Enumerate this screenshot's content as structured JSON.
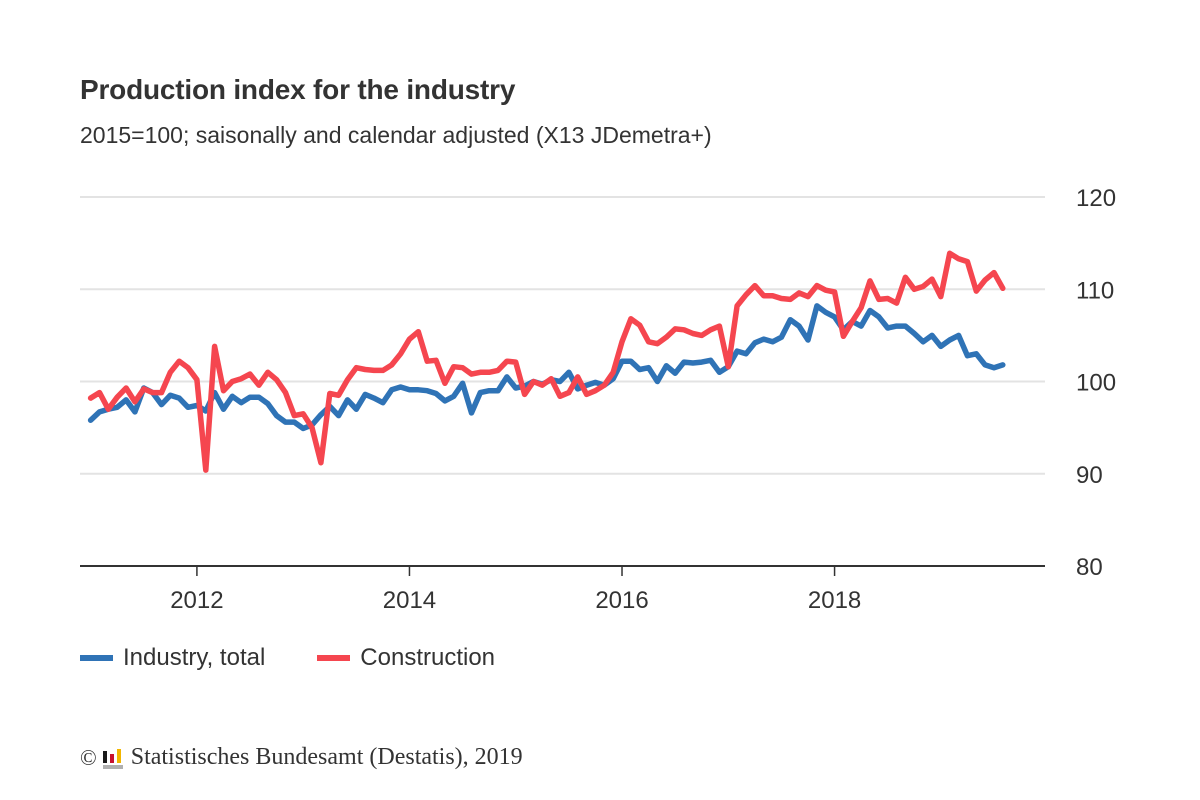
{
  "header": {
    "title": "Production index for the industry",
    "subtitle": "2015=100; saisonally and calendar adjusted (X13 JDemetra+)"
  },
  "legend": [
    {
      "label": "Industry, total",
      "color": "#2f73b6"
    },
    {
      "label": "Construction",
      "color": "#f5464f"
    }
  ],
  "footer": {
    "copyright_symbol": "©",
    "source": "Statistisches Bundesamt (Destatis), 2019"
  },
  "chart_data": {
    "type": "line",
    "title": "Production index for the industry",
    "subtitle": "2015=100; saisonally and calendar adjusted (X13 JDemetra+)",
    "xlabel": "",
    "ylabel": "",
    "x_start": "2011-01",
    "x_end": "2019-08",
    "x_frequency": "monthly",
    "x_ticks": [
      "2012",
      "2014",
      "2016",
      "2018"
    ],
    "x_range": [
      2010.9,
      2019.98
    ],
    "ylim": [
      80,
      120
    ],
    "y_ticks": [
      "80",
      "90",
      "100",
      "110",
      "120"
    ],
    "y_axis_side": "right",
    "grid": true,
    "legend_position": "bottom-left",
    "series": [
      {
        "name": "Industry, total",
        "color": "#2f73b6",
        "values": [
          95.8,
          96.7,
          97.0,
          97.2,
          98.0,
          96.7,
          99.3,
          98.8,
          97.5,
          98.5,
          98.2,
          97.2,
          97.4,
          96.8,
          98.8,
          97.0,
          98.4,
          97.7,
          98.3,
          98.3,
          97.6,
          96.3,
          95.6,
          95.6,
          94.9,
          95.3,
          96.4,
          97.3,
          96.3,
          98.0,
          97.0,
          98.6,
          98.2,
          97.7,
          99.1,
          99.4,
          99.1,
          99.1,
          99.0,
          98.7,
          97.9,
          98.4,
          99.8,
          96.6,
          98.8,
          99.0,
          99.0,
          100.5,
          99.3,
          99.5,
          100.0,
          99.7,
          100.2,
          100.0,
          101.0,
          99.2,
          99.6,
          99.9,
          99.6,
          100.3,
          102.2,
          102.2,
          101.3,
          101.5,
          100.0,
          101.7,
          100.9,
          102.1,
          102.0,
          102.1,
          102.3,
          101.0,
          101.6,
          103.3,
          103.0,
          104.2,
          104.6,
          104.3,
          104.8,
          106.7,
          106.0,
          104.5,
          108.2,
          107.5,
          107.0,
          105.6,
          106.5,
          106.0,
          107.7,
          107.0,
          105.8,
          106.0,
          106.0,
          105.2,
          104.3,
          105.0,
          103.8,
          104.5,
          105.0,
          102.8,
          103.0,
          101.8,
          101.5,
          101.8
        ]
      },
      {
        "name": "Construction",
        "color": "#f5464f",
        "values": [
          98.2,
          98.8,
          97.0,
          98.3,
          99.3,
          97.8,
          99.2,
          98.8,
          98.8,
          101.0,
          102.2,
          101.5,
          100.2,
          90.4,
          103.8,
          99.0,
          100.0,
          100.3,
          100.8,
          99.6,
          101.0,
          100.2,
          98.8,
          96.3,
          96.5,
          95.0,
          91.2,
          98.7,
          98.5,
          100.2,
          101.5,
          101.3,
          101.2,
          101.2,
          101.8,
          103.0,
          104.6,
          105.4,
          102.2,
          102.3,
          99.8,
          101.6,
          101.5,
          100.8,
          101.0,
          101.0,
          101.2,
          102.2,
          102.1,
          98.6,
          100.0,
          99.6,
          100.3,
          98.4,
          98.8,
          100.5,
          98.6,
          99.0,
          99.6,
          101.0,
          104.3,
          106.8,
          106.1,
          104.3,
          104.1,
          104.8,
          105.7,
          105.6,
          105.2,
          105.0,
          105.6,
          106.0,
          101.6,
          108.2,
          109.4,
          110.4,
          109.3,
          109.3,
          109.0,
          108.9,
          109.6,
          109.2,
          110.4,
          109.9,
          109.7,
          104.9,
          106.5,
          108.0,
          110.9,
          108.9,
          109.0,
          108.5,
          111.3,
          110.0,
          110.3,
          111.1,
          109.2,
          113.9,
          113.3,
          113.0,
          109.8,
          111.0,
          111.8,
          110.1
        ]
      }
    ]
  }
}
